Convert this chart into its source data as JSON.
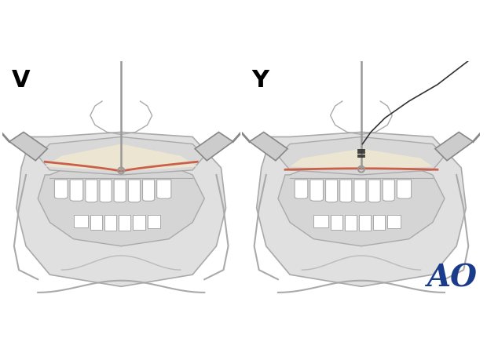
{
  "bg_color": "#ffffff",
  "label_V": "V",
  "label_Y": "Y",
  "label_fontsize": 22,
  "label_fontweight": "bold",
  "ao_text": "AO",
  "ao_color": "#1a3a8a",
  "ao_fontsize": 28,
  "tissue_fill": "#d8d8d8",
  "tissue_edge": "#aaaaaa",
  "incision_color": "#c8604a",
  "flap_fill": "#f0e8d0",
  "retractor_color": "#cccccc",
  "suture_color": "#222222",
  "wire_color": "#888888",
  "lip_bg": "#e8e8e8"
}
